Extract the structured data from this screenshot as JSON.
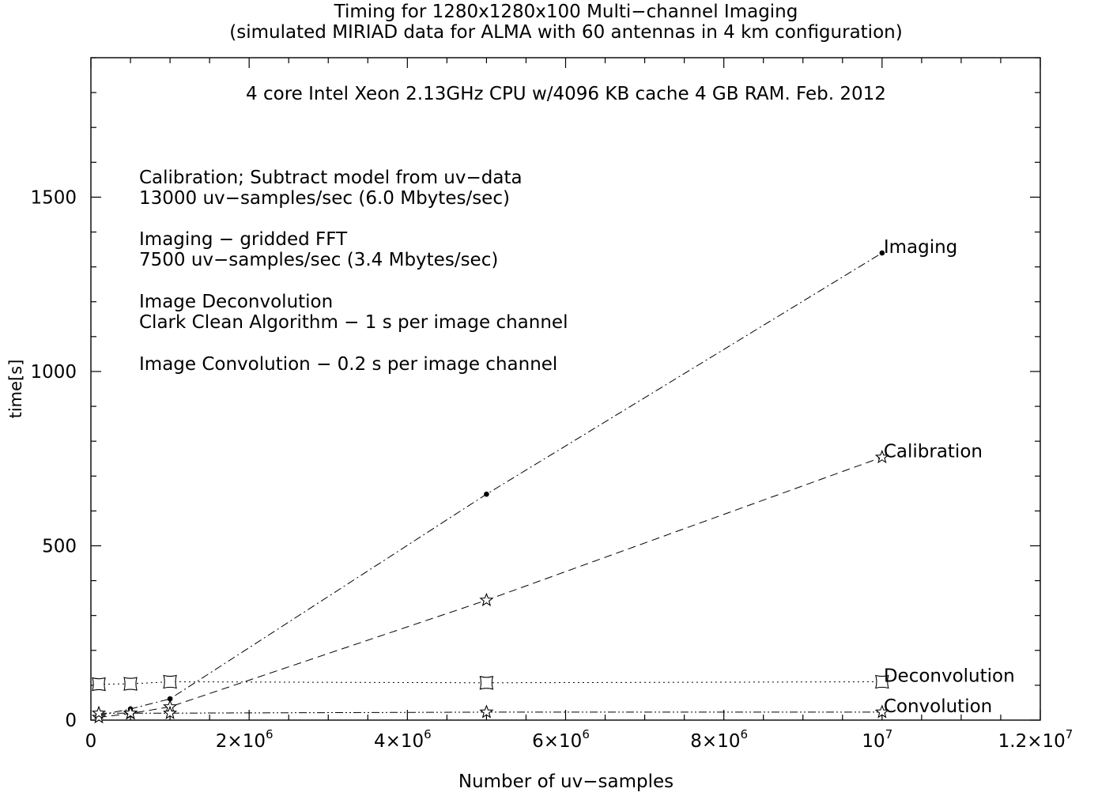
{
  "chart_data": {
    "type": "line",
    "title": "Timing for 1280x1280x100 Multi−channel Imaging",
    "subtitle": "(simulated MIRIAD data for ALMA with 60 antennas in 4 km configuration)",
    "xlabel": "Number of uv−samples",
    "ylabel": "time[s]",
    "xlim": [
      0,
      12000000
    ],
    "ylim": [
      0,
      1900
    ],
    "x_ticks": [
      {
        "value": 0,
        "label": "0"
      },
      {
        "value": 2000000,
        "label": "2×10",
        "sup": "6"
      },
      {
        "value": 4000000,
        "label": "4×10",
        "sup": "6"
      },
      {
        "value": 6000000,
        "label": "6×10",
        "sup": "6"
      },
      {
        "value": 8000000,
        "label": "8×10",
        "sup": "6"
      },
      {
        "value": 10000000,
        "label": "10",
        "sup": "7"
      },
      {
        "value": 12000000,
        "label": "1.2×10",
        "sup": "7"
      }
    ],
    "y_ticks": [
      {
        "value": 0,
        "label": "0"
      },
      {
        "value": 500,
        "label": "500"
      },
      {
        "value": 1000,
        "label": "1000"
      },
      {
        "value": 1500,
        "label": "1500"
      }
    ],
    "grid": false,
    "series": [
      {
        "name": "Imaging",
        "marker": "dot",
        "dash": "dashdot",
        "x": [
          100000,
          500000,
          1000000,
          5000000,
          10000000
        ],
        "y": [
          14,
          32,
          61,
          648,
          1340
        ]
      },
      {
        "name": "Calibration",
        "marker": "star",
        "dash": "dashed",
        "x": [
          100000,
          500000,
          1000000,
          5000000,
          10000000
        ],
        "y": [
          8,
          19,
          38,
          344,
          754
        ]
      },
      {
        "name": "Deconvolution",
        "marker": "square",
        "dash": "dotted",
        "x": [
          100000,
          500000,
          1000000,
          5000000,
          10000000
        ],
        "y": [
          103,
          104,
          110,
          107,
          110
        ]
      },
      {
        "name": "Convolution",
        "marker": "star",
        "dash": "dashdotdot",
        "x": [
          100000,
          500000,
          1000000,
          5000000,
          10000000
        ],
        "y": [
          20,
          20,
          20,
          23,
          23
        ]
      }
    ],
    "annotations": {
      "header": "4 core Intel Xeon 2.13GHz CPU w/4096 KB cache 4 GB RAM. Feb. 2012",
      "notes": [
        {
          "line1": "Calibration; Subtract model from uv−data",
          "line2": "13000 uv−samples/sec (6.0 Mbytes/sec)"
        },
        {
          "line1": "Imaging − gridded FFT",
          "line2": "7500 uv−samples/sec (3.4 Mbytes/sec)"
        },
        {
          "line1": "Image Deconvolution",
          "line2": "Clark Clean Algorithm − 1 s per image channel"
        },
        {
          "line1": "Image Convolution − 0.2 s per image channel",
          "line2": ""
        }
      ]
    }
  }
}
